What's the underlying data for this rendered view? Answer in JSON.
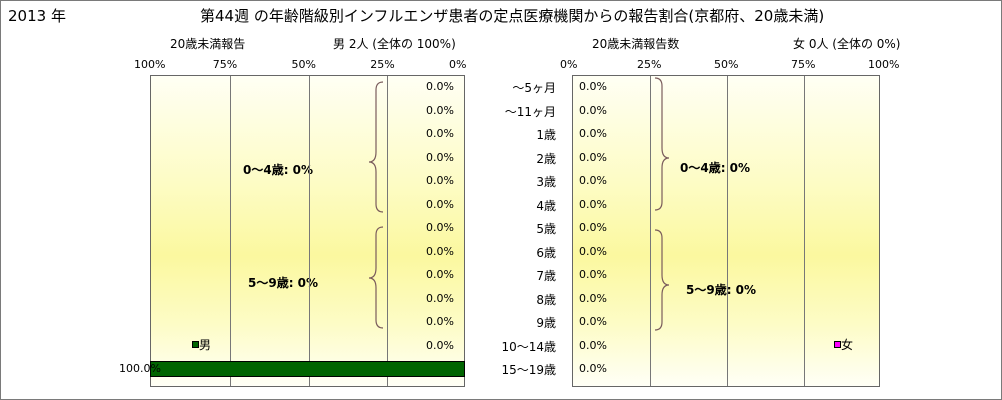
{
  "header": {
    "year": "2013 年",
    "title": "第44週 の年齢階級別インフルエンザ患者の定点医療機関からの報告割合(京都府、20歳未満)"
  },
  "left_panel": {
    "axis_title": "20歳未満報告",
    "summary": "男  2人 (全体の  100%)",
    "ticks": [
      "100%",
      "75%",
      "50%",
      "25%",
      "0%"
    ],
    "values": [
      "0.0%",
      "0.0%",
      "0.0%",
      "0.0%",
      "0.0%",
      "0.0%",
      "0.0%",
      "0.0%",
      "0.0%",
      "0.0%",
      "0.0%",
      "0.0%",
      "100.0%"
    ],
    "group1_label": "0〜4歳:  0%",
    "group2_label": "5〜9歳:  0%",
    "legend": "男"
  },
  "right_panel": {
    "axis_title": "20歳未満報告数",
    "summary": "女  0人 (全体の  0%)",
    "ticks": [
      "0%",
      "25%",
      "50%",
      "75%",
      "100%"
    ],
    "values": [
      "0.0%",
      "0.0%",
      "0.0%",
      "0.0%",
      "0.0%",
      "0.0%",
      "0.0%",
      "0.0%",
      "0.0%",
      "0.0%",
      "0.0%",
      "0.0%",
      "0.0%"
    ],
    "group1_label": "0〜4歳:  0%",
    "group2_label": "5〜9歳:  0%",
    "legend": "女"
  },
  "age_labels": [
    "〜5ヶ月",
    "〜11ヶ月",
    "1歳",
    "2歳",
    "3歳",
    "4歳",
    "5歳",
    "6歳",
    "7歳",
    "8歳",
    "9歳",
    "10〜14歳",
    "15〜19歳"
  ],
  "colors": {
    "male": "#006400",
    "female": "#ff00ff",
    "grid": "#777777"
  },
  "chart_data": {
    "type": "bar",
    "title": "第44週 の年齢階級別インフルエンザ患者の定点医療機関からの報告割合(京都府、20歳未満)",
    "categories": [
      "〜5ヶ月",
      "〜11ヶ月",
      "1歳",
      "2歳",
      "3歳",
      "4歳",
      "5歳",
      "6歳",
      "7歳",
      "8歳",
      "9歳",
      "10〜14歳",
      "15〜19歳"
    ],
    "series": [
      {
        "name": "男",
        "values": [
          0,
          0,
          0,
          0,
          0,
          0,
          0,
          0,
          0,
          0,
          0,
          0,
          100
        ]
      },
      {
        "name": "女",
        "values": [
          0,
          0,
          0,
          0,
          0,
          0,
          0,
          0,
          0,
          0,
          0,
          0,
          0
        ]
      }
    ],
    "xlim": [
      0,
      100
    ],
    "grid": true
  }
}
